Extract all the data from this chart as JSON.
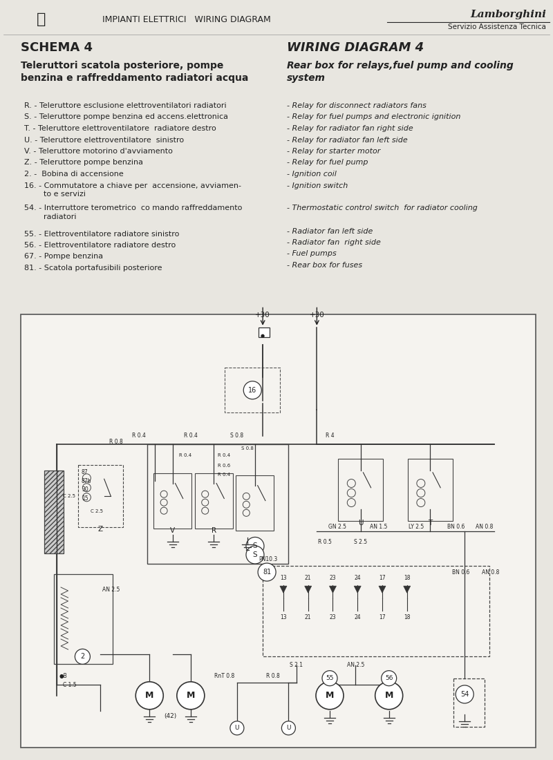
{
  "page_bg": "#e8e6e0",
  "logo_text": "Lamborghini",
  "service_text": "Servizio Assistenza Tecnica",
  "header_center": "IMPIANTI ELETTRICI   WIRING DIAGRAM",
  "schema_label": "SCHEMA 4",
  "wiring_label": "WIRING DIAGRAM 4",
  "title_it": "Teleruttori scatola posteriore, pompe\nbenzina e raffreddamento radiatori acqua",
  "title_en": "Rear box for relays,fuel pump and cooling\nsystem",
  "items_it": [
    "R. - Teleruttore esclusione elettroventilatori radiatori",
    "S. - Teleruttore pompe benzina ed accens.elettronica",
    "T. - Teleruttore elettroventilatore  radiatore destro",
    "U. - Teleruttore elettroventilatore  sinistro",
    "V. - Teleruttore motorino d'avviamento",
    "Z. - Teleruttore pompe benzina",
    "2. -  Bobina di accensione",
    "16. - Commutatore a chiave per  accensione, avviamen-\n        to e servizi",
    "54. - Interruttore terometrico  co mando raffreddamento\n        radiatori",
    "55. - Elettroventilatore radiatore sinistro",
    "56. - Elettroventilatore radiatore destro",
    "67. - Pompe benzina",
    "81. - Scatola portafusibili posteriore"
  ],
  "items_en": [
    "- Relay for disconnect radiators fans",
    "- Relay for fuel pumps and electronic ignition",
    "- Relay for radiator fan right side",
    "- Relay for radiator fan left side",
    "- Relay for starter motor",
    "- Relay for fuel pump",
    "- Ignition coil",
    "- Ignition switch",
    "- Thermostatic control switch  for radiator cooling",
    "- Radiator fan left side",
    "- Radiator fan  right side",
    "- Fuel pumps",
    "- Rear box for fuses"
  ],
  "text_color": "#222222",
  "diagram_bg": "#f5f3ef"
}
